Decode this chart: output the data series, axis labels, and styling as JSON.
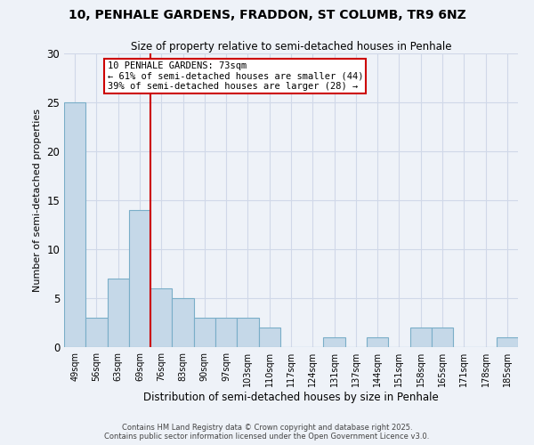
{
  "title_line1": "10, PENHALE GARDENS, FRADDON, ST COLUMB, TR9 6NZ",
  "title_line2": "Size of property relative to semi-detached houses in Penhale",
  "xlabel": "Distribution of semi-detached houses by size in Penhale",
  "ylabel": "Number of semi-detached properties",
  "categories": [
    "49sqm",
    "56sqm",
    "63sqm",
    "69sqm",
    "76sqm",
    "83sqm",
    "90sqm",
    "97sqm",
    "103sqm",
    "110sqm",
    "117sqm",
    "124sqm",
    "131sqm",
    "137sqm",
    "144sqm",
    "151sqm",
    "158sqm",
    "165sqm",
    "171sqm",
    "178sqm",
    "185sqm"
  ],
  "values": [
    25,
    3,
    7,
    14,
    6,
    5,
    3,
    3,
    3,
    2,
    0,
    0,
    1,
    0,
    1,
    0,
    2,
    2,
    0,
    0,
    1
  ],
  "bar_color": "#c5d8e8",
  "bar_edge_color": "#7aaec8",
  "annotation_title": "10 PENHALE GARDENS: 73sqm",
  "annotation_line1": "← 61% of semi-detached houses are smaller (44)",
  "annotation_line2": "39% of semi-detached houses are larger (28) →",
  "annotation_box_color": "#ffffff",
  "annotation_box_edge": "#cc0000",
  "vline_color": "#cc0000",
  "ylim": [
    0,
    30
  ],
  "yticks": [
    0,
    5,
    10,
    15,
    20,
    25,
    30
  ],
  "grid_color": "#d0d8e8",
  "background_color": "#eef2f8",
  "footer_line1": "Contains HM Land Registry data © Crown copyright and database right 2025.",
  "footer_line2": "Contains public sector information licensed under the Open Government Licence v3.0.",
  "bar_width": 1.0,
  "vline_x": 3.5
}
